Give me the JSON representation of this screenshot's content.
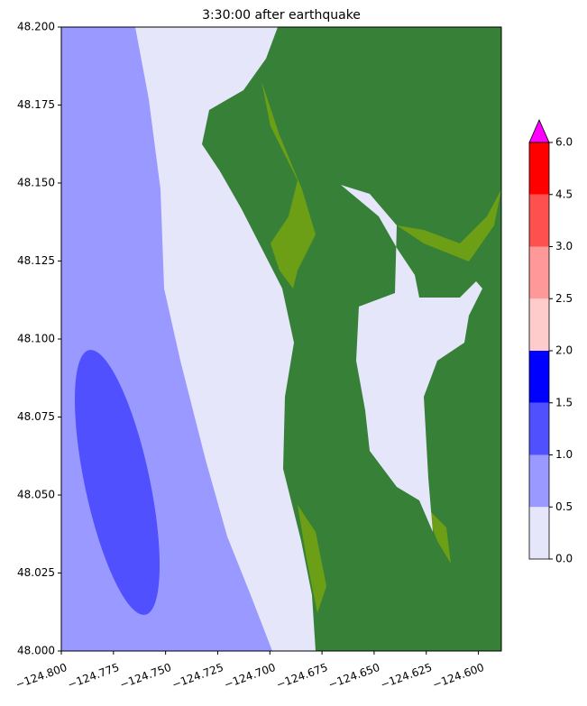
{
  "chart_data": {
    "type": "contour",
    "title": "3:30:00 after earthquake",
    "xlim": [
      -124.8,
      -124.589
    ],
    "ylim": [
      48.0,
      48.2
    ],
    "xticks": [
      {
        "value": -124.8,
        "label": "−124.800"
      },
      {
        "value": -124.775,
        "label": "−124.775"
      },
      {
        "value": -124.75,
        "label": "−124.750"
      },
      {
        "value": -124.725,
        "label": "−124.725"
      },
      {
        "value": -124.7,
        "label": "−124.700"
      },
      {
        "value": -124.675,
        "label": "−124.675"
      },
      {
        "value": -124.65,
        "label": "−124.650"
      },
      {
        "value": -124.625,
        "label": "−124.625"
      },
      {
        "value": -124.6,
        "label": "−124.600"
      }
    ],
    "yticks": [
      {
        "value": 48.0,
        "label": "48.000"
      },
      {
        "value": 48.025,
        "label": "48.025"
      },
      {
        "value": 48.05,
        "label": "48.050"
      },
      {
        "value": 48.075,
        "label": "48.075"
      },
      {
        "value": 48.1,
        "label": "48.100"
      },
      {
        "value": 48.125,
        "label": "48.125"
      },
      {
        "value": 48.15,
        "label": "48.150"
      },
      {
        "value": 48.175,
        "label": "48.175"
      },
      {
        "value": 48.2,
        "label": "48.200"
      }
    ],
    "colorbar": {
      "levels": [
        {
          "value": 0,
          "label": "0.0"
        },
        {
          "value": 0.5,
          "label": "0.5"
        },
        {
          "value": 1,
          "label": "1.0"
        },
        {
          "value": 1.5,
          "label": "1.5"
        },
        {
          "value": 2,
          "label": "2.0"
        },
        {
          "value": 2.5,
          "label": "2.5"
        },
        {
          "value": 3,
          "label": "3.0"
        },
        {
          "value": 4.5,
          "label": "4.5"
        },
        {
          "value": 6,
          "label": "6.0"
        }
      ],
      "colors": [
        "#e6e6fa",
        "#9999ff",
        "#5050ff",
        "#0000ff",
        "#ffcccc",
        "#ff9999",
        "#ff5050",
        "#ff0000"
      ],
      "extend_color": "#ff00ff"
    },
    "land_color": "#378037",
    "shore_color": "#6d9f16"
  }
}
